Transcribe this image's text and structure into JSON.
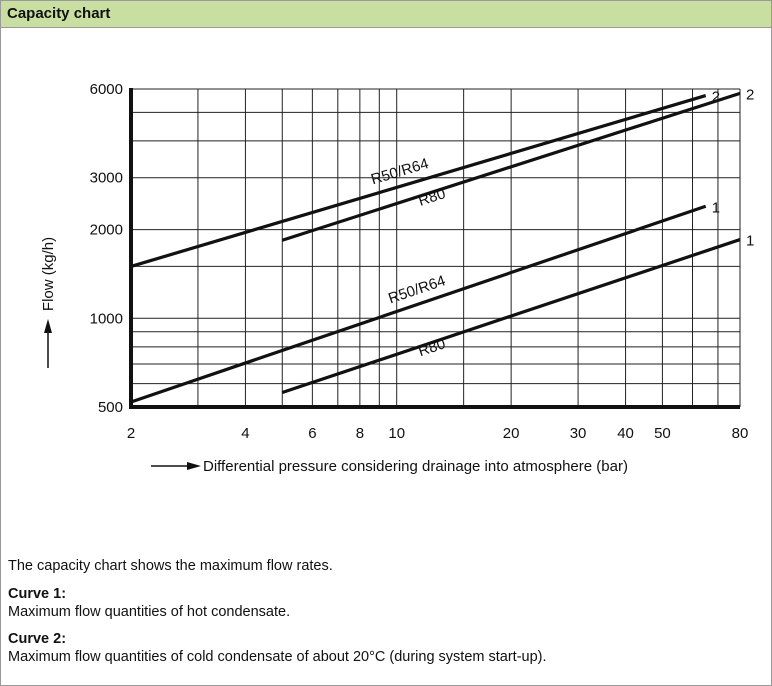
{
  "header": {
    "title": "Capacity chart"
  },
  "chart_data": {
    "type": "line",
    "title": "",
    "xlabel": "Differential pressure considering drainage into atmosphere (bar)",
    "ylabel": "Flow (kg/h)",
    "xscale": "log",
    "yscale": "log",
    "xlim": [
      2,
      80
    ],
    "ylim": [
      500,
      6000
    ],
    "xticks": [
      2,
      4,
      6,
      8,
      10,
      20,
      30,
      40,
      50,
      80
    ],
    "yticks": [
      500,
      1000,
      2000,
      3000,
      6000
    ],
    "grid": true,
    "series": [
      {
        "name": "R50/R64",
        "curve": "2",
        "x": [
          2,
          65
        ],
        "y": [
          1500,
          5700
        ]
      },
      {
        "name": "R80",
        "curve": "2",
        "x": [
          5,
          80
        ],
        "y": [
          1840,
          5800
        ]
      },
      {
        "name": "R50/R64",
        "curve": "1",
        "x": [
          2,
          65
        ],
        "y": [
          520,
          2400
        ]
      },
      {
        "name": "R80",
        "curve": "1",
        "x": [
          5,
          80
        ],
        "y": [
          560,
          1850
        ]
      }
    ]
  },
  "notes": {
    "intro": "The capacity chart shows the maximum flow rates.",
    "curve1_title": "Curve 1:",
    "curve1_desc": "Maximum flow quantities of hot condensate.",
    "curve2_title": "Curve 2:",
    "curve2_desc": "Maximum flow quantities of cold condensate of about 20°C (during system start-up)."
  }
}
